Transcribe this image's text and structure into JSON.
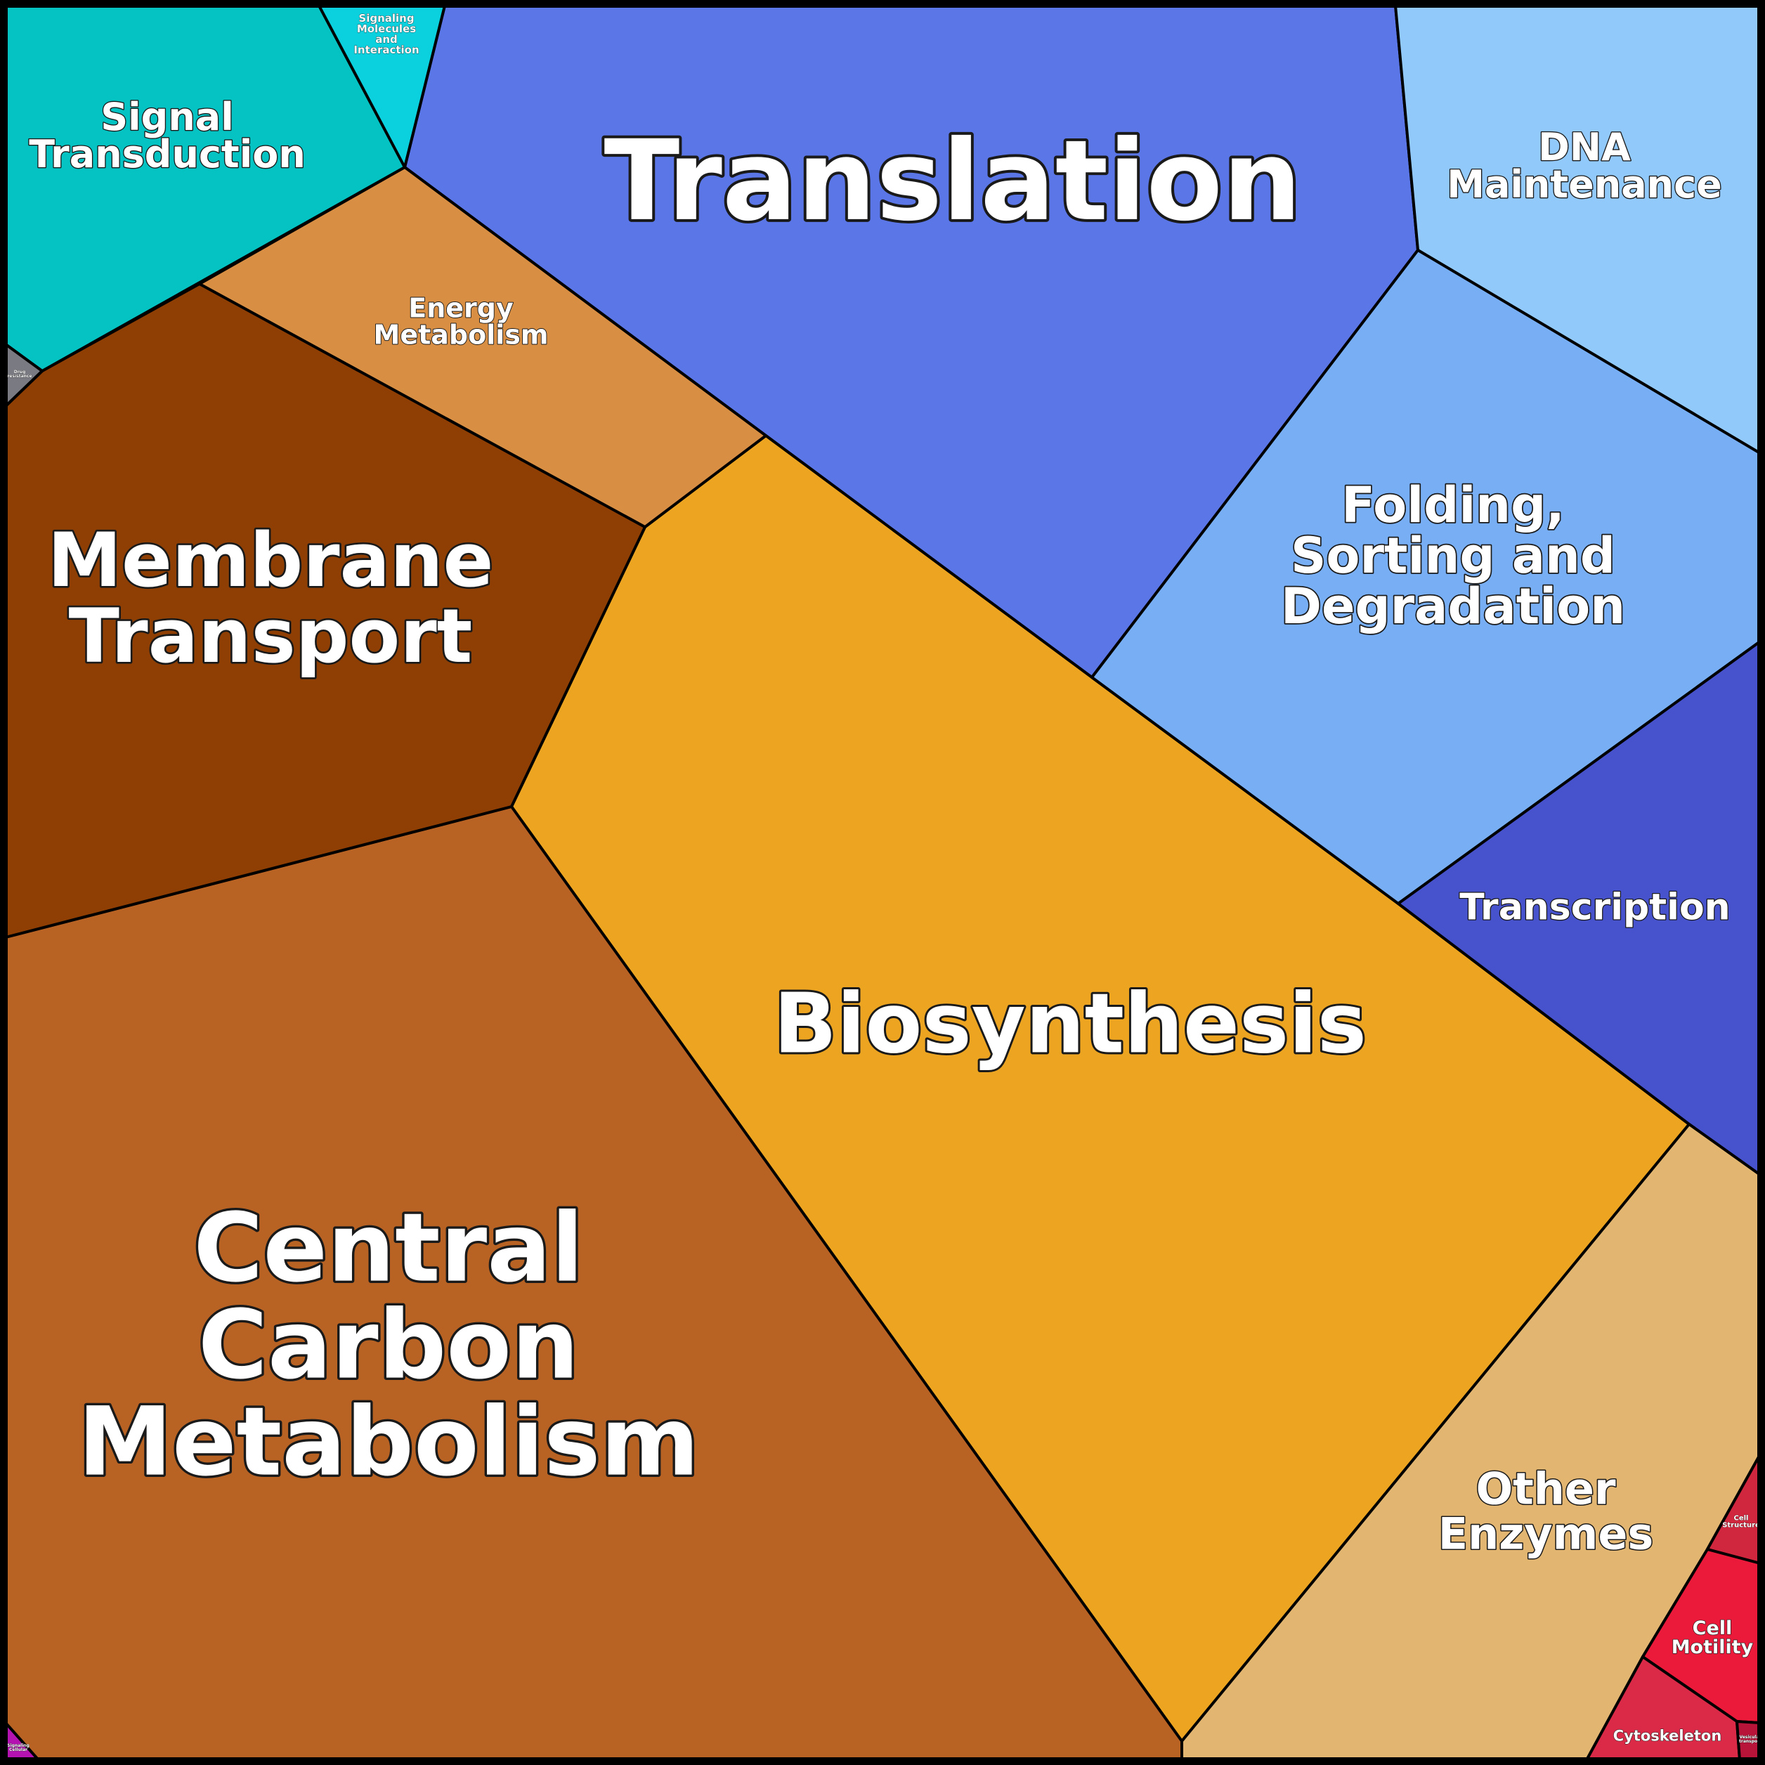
{
  "diagram": {
    "type": "voronoi-treemap",
    "cells": [
      {
        "id": "translation",
        "label": [
          "Translation"
        ],
        "color": "#5B76E6"
      },
      {
        "id": "biosynthesis",
        "label": [
          "Biosynthesis"
        ],
        "color": "#EDA521"
      },
      {
        "id": "central-carbon-metabolism",
        "label": [
          "Central",
          "Carbon",
          "Metabolism"
        ],
        "color": "#B86323"
      },
      {
        "id": "membrane-transport",
        "label": [
          "Membrane",
          "Transport"
        ],
        "color": "#8F3F03"
      },
      {
        "id": "energy-metabolism",
        "label": [
          "Energy",
          "Metabolism"
        ],
        "color": "#D98F43"
      },
      {
        "id": "signal-transduction",
        "label": [
          "Signal",
          "Transduction"
        ],
        "color": "#06C3C3"
      },
      {
        "id": "signaling-molecules",
        "label": [
          "Signaling",
          "Molecules",
          "and",
          "Interaction"
        ],
        "color": "#0AD1DD"
      },
      {
        "id": "dna-maintenance",
        "label": [
          "DNA",
          "Maintenance"
        ],
        "color": "#91C9FA"
      },
      {
        "id": "folding-sorting-degradation",
        "label": [
          "Folding,",
          "Sorting and",
          "Degradation"
        ],
        "color": "#77AEF4"
      },
      {
        "id": "transcription",
        "label": [
          "Transcription"
        ],
        "color": "#4752CD"
      },
      {
        "id": "other-enzymes",
        "label": [
          "Other",
          "Enzymes"
        ],
        "color": "#E2B570"
      },
      {
        "id": "cell-structure",
        "label": [
          "Cell",
          "Structure"
        ],
        "color": "#D1273E"
      },
      {
        "id": "cell-motility",
        "label": [
          "Cell",
          "Motility"
        ],
        "color": "#EB1A3B"
      },
      {
        "id": "cytoskeleton",
        "label": [
          "Cytoskeleton"
        ],
        "color": "#DA2A47"
      },
      {
        "id": "vesicular-transport",
        "label": [
          "Vesicular",
          "transport"
        ],
        "color": "#B8143A"
      },
      {
        "id": "drug-resistance",
        "label": [
          "Drug",
          "resistance"
        ],
        "color": "#7A7A82"
      },
      {
        "id": "signaling-cellular",
        "label": [
          "Signaling",
          "Cellular"
        ],
        "color": "#B512B2"
      }
    ]
  }
}
